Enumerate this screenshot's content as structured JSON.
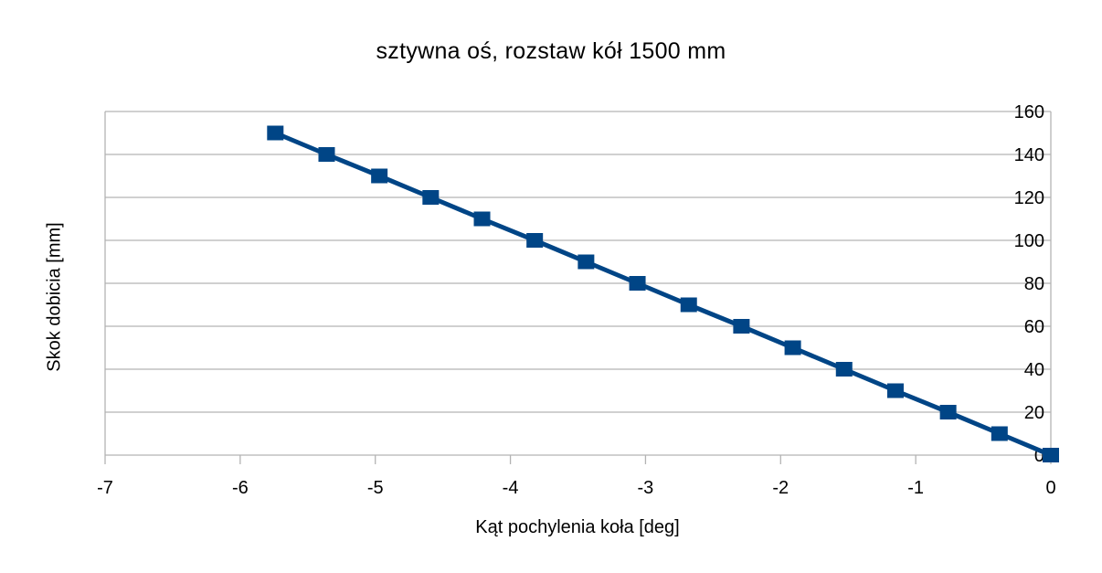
{
  "chart_data": {
    "type": "line",
    "title": "sztywna oś, rozstaw kół 1500 mm",
    "xlabel": "Kąt pochylenia koła [deg]",
    "ylabel": "Skok dobicia [mm]",
    "xlim": [
      -7,
      0
    ],
    "ylim": [
      0,
      160
    ],
    "xticks": [
      -7,
      -6,
      -5,
      -4,
      -3,
      -2,
      -1,
      0
    ],
    "yticks": [
      0,
      20,
      40,
      60,
      80,
      100,
      120,
      140,
      160
    ],
    "grid": {
      "horizontal": true,
      "vertical": false
    },
    "y_axis_position": "right",
    "legend": null,
    "series": [
      {
        "name": "Skok dobicia",
        "color": "#004586",
        "marker": "square",
        "x": [
          -5.74,
          -5.36,
          -4.97,
          -4.59,
          -4.21,
          -3.82,
          -3.44,
          -3.06,
          -2.68,
          -2.29,
          -1.91,
          -1.53,
          -1.15,
          -0.76,
          -0.38,
          0
        ],
        "y": [
          150,
          140,
          130,
          120,
          110,
          100,
          90,
          80,
          70,
          60,
          50,
          40,
          30,
          20,
          10,
          0
        ]
      }
    ]
  },
  "colors": {
    "series": "#004586",
    "grid": "#b3b3b3",
    "text": "#000000",
    "background": "#ffffff"
  }
}
